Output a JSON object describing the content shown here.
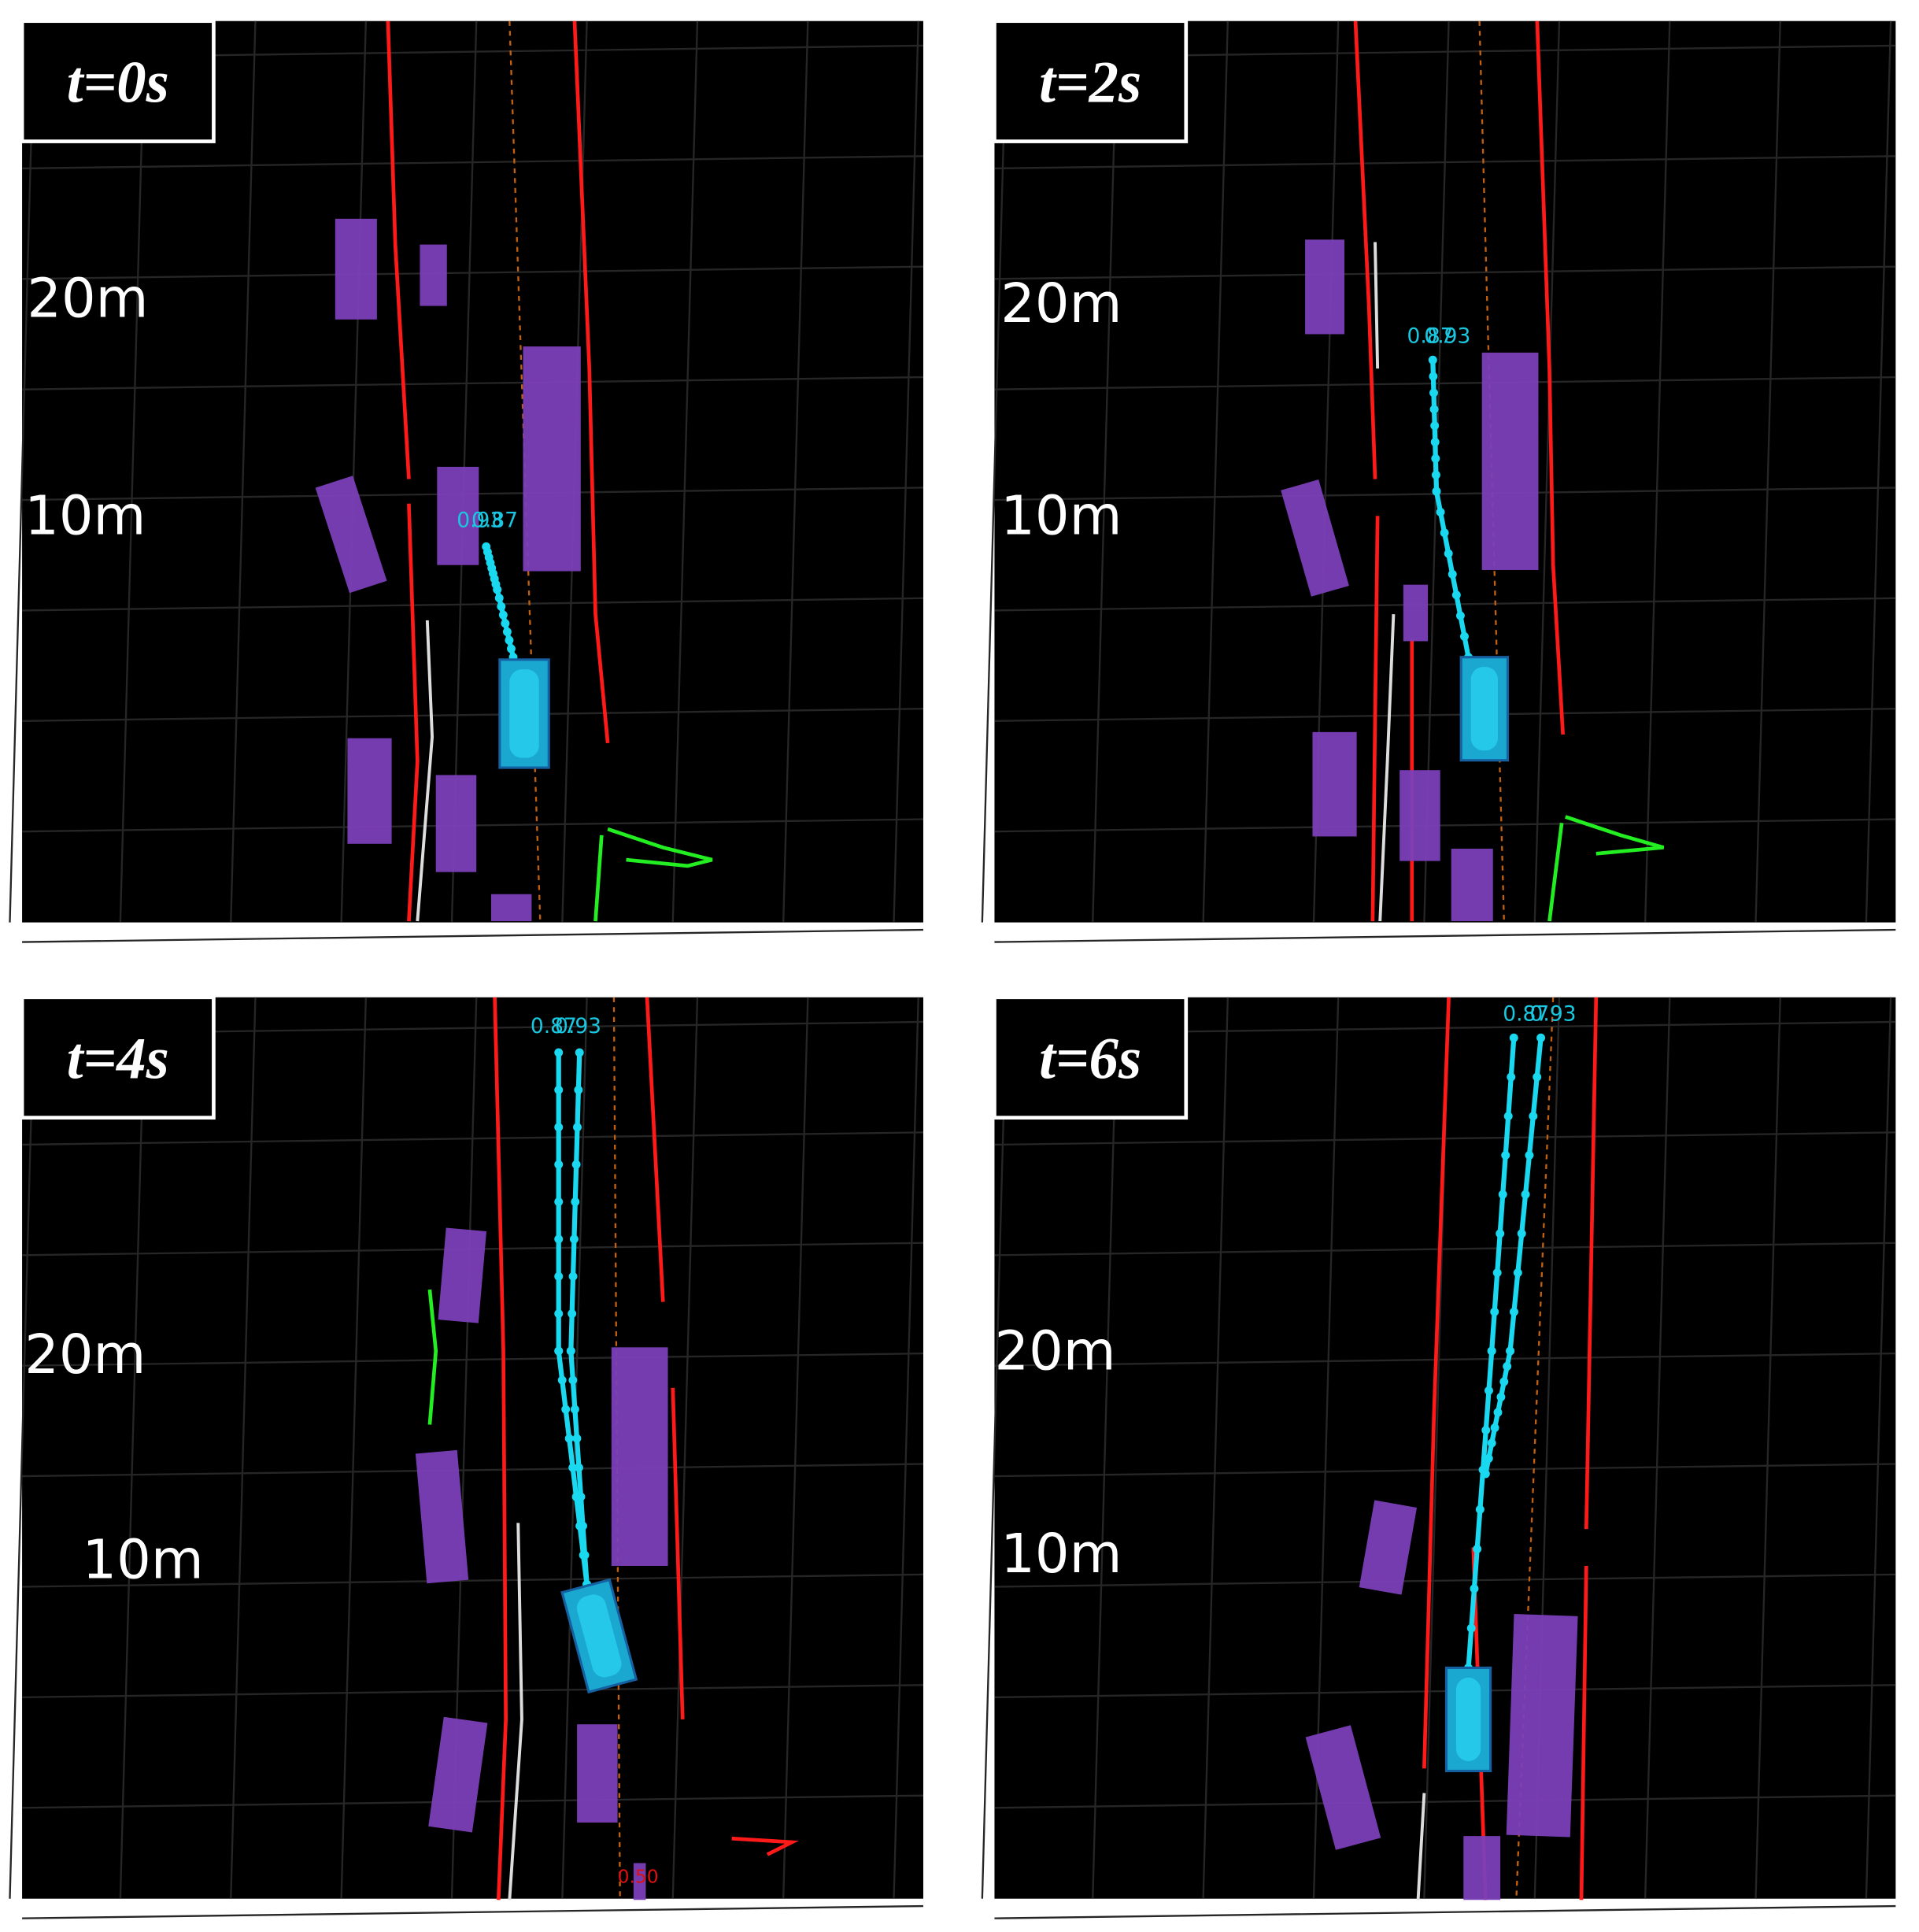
{
  "panels": [
    {
      "time": "t=0s",
      "distance_labels": [
        "20m",
        "10m"
      ],
      "scores": [
        "0.93",
        "0.87"
      ]
    },
    {
      "time": "t=2s",
      "distance_labels": [
        "20m",
        "10m"
      ],
      "scores": [
        "0.87",
        "0.93"
      ]
    },
    {
      "time": "t=4s",
      "distance_labels": [
        "20m",
        "10m"
      ],
      "scores": [
        "0.87",
        "0.93"
      ],
      "other_labels": [
        "0.50"
      ]
    },
    {
      "time": "t=6s",
      "distance_labels": [
        "20m",
        "10m"
      ],
      "scores": [
        "0.87",
        "0.93"
      ]
    }
  ]
}
